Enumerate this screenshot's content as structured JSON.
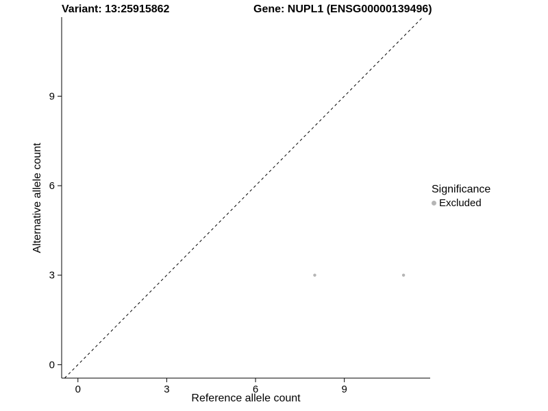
{
  "chart_data": {
    "type": "scatter",
    "title_left": "Variant: 13:25915862",
    "title_right": "Gene: NUPL1 (ENSG00000139496)",
    "xlabel": "Reference allele count",
    "ylabel": "Alternative allele count",
    "xticks": [
      0,
      3,
      6,
      9
    ],
    "yticks": [
      0,
      3,
      6,
      9
    ],
    "xlim": [
      -0.55,
      11.9
    ],
    "ylim": [
      -0.45,
      11.65
    ],
    "grid": false,
    "legend": {
      "position": "right",
      "title": "Significance",
      "items": [
        {
          "label": "Excluded",
          "color": "#b5b5b5"
        }
      ]
    },
    "series": [
      {
        "name": "Excluded",
        "color": "#b5b5b5",
        "marker_radius": 2.2,
        "points": [
          [
            8,
            3
          ],
          [
            11,
            3
          ]
        ]
      }
    ],
    "reference_line": {
      "type": "identity y=x",
      "style": "dashed",
      "color": "#000000"
    }
  },
  "colors": {
    "axis": "#000000",
    "background": "#ffffff"
  }
}
